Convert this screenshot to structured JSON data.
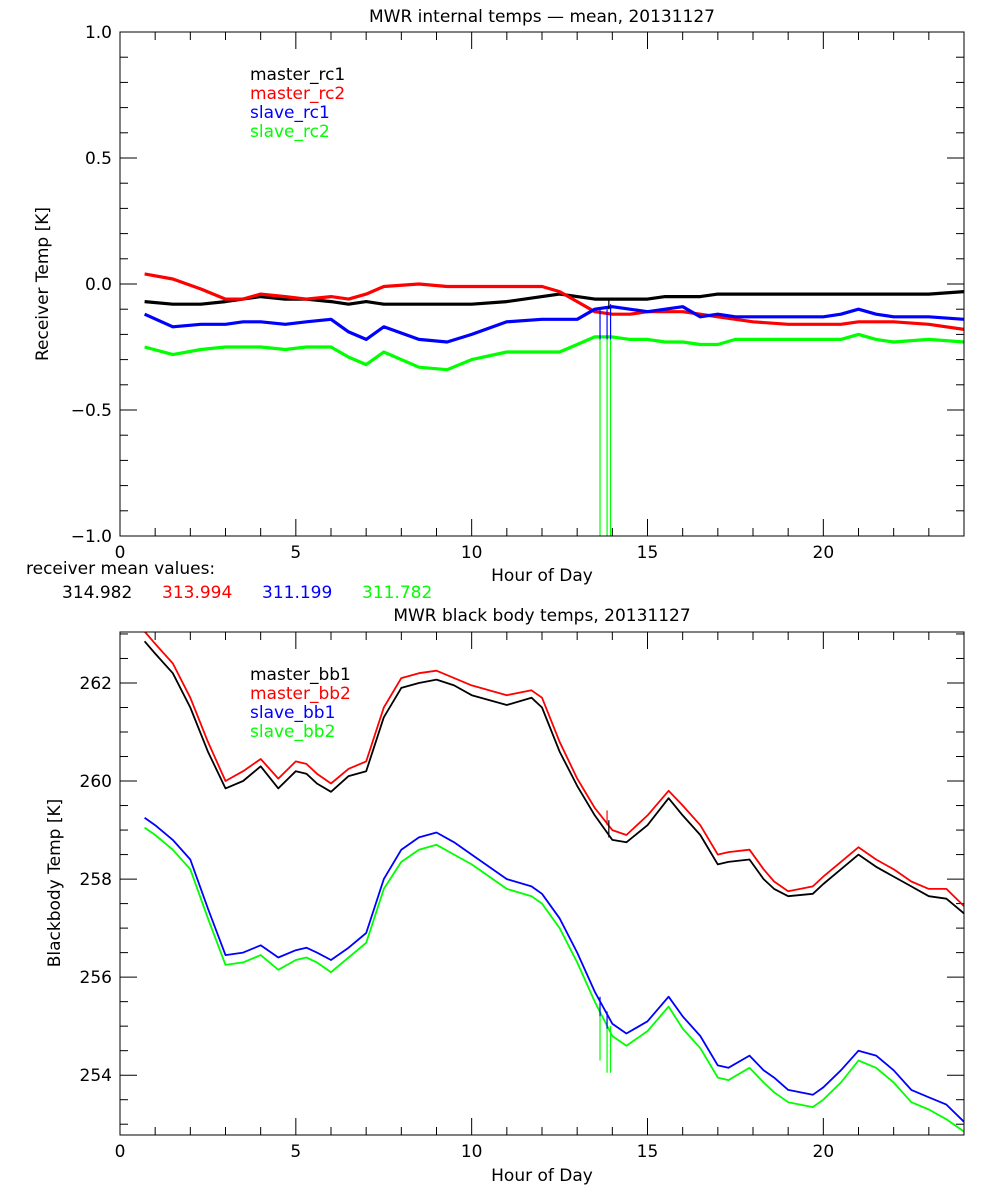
{
  "chart_data": [
    {
      "type": "line",
      "title": "MWR internal temps — mean, 20131127",
      "xlabel": "Hour of Day",
      "ylabel": "Receiver Temp [K]",
      "xlim": [
        0,
        24
      ],
      "ylim": [
        -1.0,
        1.0
      ],
      "xticks": [
        0,
        5,
        10,
        15,
        20
      ],
      "xtick_labels": [
        "0",
        "5",
        "10",
        "15",
        "20"
      ],
      "yticks": [
        -1.0,
        -0.5,
        0.0,
        0.5,
        1.0
      ],
      "ytick_labels": [
        "−1.0",
        "−0.5",
        "0.0",
        "0.5",
        "1.0"
      ],
      "grid": false,
      "legend_position": "top-left",
      "x": [
        0.7,
        1.5,
        2.3,
        3.0,
        3.5,
        4.0,
        4.7,
        5.3,
        6.0,
        6.5,
        7.0,
        7.5,
        8.5,
        9.3,
        10.0,
        11.0,
        12.0,
        12.5,
        13.0,
        13.5,
        14.0,
        14.5,
        15.0,
        15.5,
        16.0,
        16.5,
        17.0,
        17.5,
        18.0,
        19.0,
        20.0,
        20.5,
        21.0,
        21.5,
        22.0,
        23.0,
        24.0
      ],
      "series": [
        {
          "name": "master_rc1",
          "color": "#000000",
          "values": [
            -0.07,
            -0.08,
            -0.08,
            -0.07,
            -0.06,
            -0.05,
            -0.06,
            -0.06,
            -0.07,
            -0.08,
            -0.07,
            -0.08,
            -0.08,
            -0.08,
            -0.08,
            -0.07,
            -0.05,
            -0.04,
            -0.05,
            -0.06,
            -0.06,
            -0.06,
            -0.06,
            -0.05,
            -0.05,
            -0.05,
            -0.04,
            -0.04,
            -0.04,
            -0.04,
            -0.04,
            -0.04,
            -0.04,
            -0.04,
            -0.04,
            -0.04,
            -0.03
          ]
        },
        {
          "name": "master_rc2",
          "color": "#ff0000",
          "values": [
            0.04,
            0.02,
            -0.02,
            -0.06,
            -0.06,
            -0.04,
            -0.05,
            -0.06,
            -0.05,
            -0.06,
            -0.04,
            -0.01,
            0.0,
            -0.01,
            -0.01,
            -0.01,
            -0.01,
            -0.03,
            -0.07,
            -0.11,
            -0.12,
            -0.12,
            -0.11,
            -0.11,
            -0.11,
            -0.12,
            -0.13,
            -0.14,
            -0.15,
            -0.16,
            -0.16,
            -0.16,
            -0.15,
            -0.15,
            -0.15,
            -0.16,
            -0.18
          ]
        },
        {
          "name": "slave_rc1",
          "color": "#0000ff",
          "values": [
            -0.12,
            -0.17,
            -0.16,
            -0.16,
            -0.15,
            -0.15,
            -0.16,
            -0.15,
            -0.14,
            -0.19,
            -0.22,
            -0.17,
            -0.22,
            -0.23,
            -0.2,
            -0.15,
            -0.14,
            -0.14,
            -0.14,
            -0.1,
            -0.09,
            -0.1,
            -0.11,
            -0.1,
            -0.09,
            -0.13,
            -0.12,
            -0.13,
            -0.13,
            -0.13,
            -0.13,
            -0.12,
            -0.1,
            -0.12,
            -0.13,
            -0.13,
            -0.14
          ]
        },
        {
          "name": "slave_rc2",
          "color": "#00ff00",
          "values": [
            -0.25,
            -0.28,
            -0.26,
            -0.25,
            -0.25,
            -0.25,
            -0.26,
            -0.25,
            -0.25,
            -0.29,
            -0.32,
            -0.27,
            -0.33,
            -0.34,
            -0.3,
            -0.27,
            -0.27,
            -0.27,
            -0.24,
            -0.21,
            -0.21,
            -0.22,
            -0.22,
            -0.23,
            -0.23,
            -0.24,
            -0.24,
            -0.22,
            -0.22,
            -0.22,
            -0.22,
            -0.22,
            -0.2,
            -0.22,
            -0.23,
            -0.22,
            -0.23
          ]
        }
      ],
      "spikes": [
        {
          "x": 13.65,
          "color": "#00ff00",
          "from": -0.22,
          "to": -1.0
        },
        {
          "x": 13.85,
          "color": "#00ff00",
          "from": -0.22,
          "to": -1.0
        },
        {
          "x": 13.95,
          "color": "#00ff00",
          "from": -0.22,
          "to": -1.0
        },
        {
          "x": 13.65,
          "color": "#0000ff",
          "from": -0.1,
          "to": -0.22
        },
        {
          "x": 13.85,
          "color": "#0000ff",
          "from": -0.1,
          "to": -0.22
        },
        {
          "x": 13.95,
          "color": "#0000ff",
          "from": -0.08,
          "to": -0.22
        },
        {
          "x": 13.9,
          "color": "#000000",
          "from": -0.06,
          "to": -0.1
        }
      ],
      "annotation": {
        "label": "receiver mean values:",
        "values": [
          {
            "text": "314.982",
            "color": "#000000"
          },
          {
            "text": "313.994",
            "color": "#ff0000"
          },
          {
            "text": "311.199",
            "color": "#0000ff"
          },
          {
            "text": "311.782",
            "color": "#00ff00"
          }
        ]
      }
    },
    {
      "type": "line",
      "title": "MWR black body temps, 20131127",
      "xlabel": "Hour of Day",
      "ylabel": "Blackbody Temp [K]",
      "xlim": [
        0,
        24
      ],
      "ylim": [
        252.78,
        263.04
      ],
      "xticks": [
        0,
        5,
        10,
        15,
        20
      ],
      "xtick_labels": [
        "0",
        "5",
        "10",
        "15",
        "20"
      ],
      "yticks": [
        254,
        256,
        258,
        260,
        262
      ],
      "ytick_labels": [
        "254",
        "256",
        "258",
        "260",
        "262"
      ],
      "grid": false,
      "legend_position": "top-left",
      "x": [
        0.7,
        1.0,
        1.5,
        2.0,
        2.5,
        3.0,
        3.5,
        4.0,
        4.5,
        5.0,
        5.3,
        5.6,
        6.0,
        6.5,
        7.0,
        7.5,
        8.0,
        8.5,
        9.0,
        9.5,
        10.0,
        11.0,
        11.7,
        12.0,
        12.5,
        13.0,
        13.5,
        14.0,
        14.4,
        15.0,
        15.6,
        16.0,
        16.5,
        17.0,
        17.3,
        17.9,
        18.3,
        18.6,
        19.0,
        19.7,
        20.0,
        20.5,
        21.0,
        21.5,
        22.0,
        22.5,
        23.0,
        23.5,
        24.0
      ],
      "series": [
        {
          "name": "master_bb1",
          "color": "#000000",
          "values": [
            262.85,
            262.6,
            262.2,
            261.5,
            260.6,
            259.85,
            260.0,
            260.3,
            259.85,
            260.2,
            260.15,
            259.95,
            259.78,
            260.1,
            260.2,
            261.3,
            261.9,
            262.0,
            262.07,
            261.95,
            261.75,
            261.55,
            261.7,
            261.5,
            260.6,
            259.9,
            259.3,
            258.8,
            258.75,
            259.1,
            259.65,
            259.3,
            258.9,
            258.3,
            258.35,
            258.4,
            258.0,
            257.8,
            257.65,
            257.7,
            257.9,
            258.2,
            258.5,
            258.25,
            258.05,
            257.85,
            257.65,
            257.6,
            257.3
          ]
        },
        {
          "name": "master_bb2",
          "color": "#ff0000",
          "values": [
            263.05,
            262.8,
            262.4,
            261.7,
            260.8,
            260.0,
            260.2,
            260.45,
            260.05,
            260.4,
            260.35,
            260.15,
            259.95,
            260.25,
            260.4,
            261.5,
            262.1,
            262.2,
            262.25,
            262.1,
            261.95,
            261.75,
            261.85,
            261.7,
            260.8,
            260.05,
            259.45,
            259.0,
            258.9,
            259.3,
            259.8,
            259.5,
            259.1,
            258.5,
            258.55,
            258.6,
            258.2,
            257.95,
            257.75,
            257.85,
            258.05,
            258.35,
            258.65,
            258.4,
            258.2,
            257.95,
            257.8,
            257.8,
            257.45
          ]
        },
        {
          "name": "slave_bb1",
          "color": "#0000ff",
          "values": [
            259.25,
            259.1,
            258.8,
            258.4,
            257.4,
            256.45,
            256.5,
            256.65,
            256.4,
            256.55,
            256.6,
            256.5,
            256.35,
            256.6,
            256.9,
            258.0,
            258.6,
            258.85,
            258.95,
            258.75,
            258.5,
            258.0,
            257.85,
            257.7,
            257.2,
            256.5,
            255.7,
            255.05,
            254.85,
            255.1,
            255.6,
            255.2,
            254.8,
            254.2,
            254.15,
            254.4,
            254.1,
            253.95,
            253.7,
            253.6,
            253.75,
            254.1,
            254.5,
            254.4,
            254.1,
            253.7,
            253.55,
            253.4,
            253.05
          ]
        },
        {
          "name": "slave_bb2",
          "color": "#00ff00",
          "values": [
            259.05,
            258.9,
            258.6,
            258.2,
            257.2,
            256.25,
            256.3,
            256.45,
            256.15,
            256.35,
            256.4,
            256.3,
            256.1,
            256.4,
            256.7,
            257.8,
            258.35,
            258.6,
            258.7,
            258.5,
            258.3,
            257.8,
            257.65,
            257.5,
            257.0,
            256.3,
            255.5,
            254.8,
            254.6,
            254.9,
            255.4,
            254.95,
            254.55,
            253.95,
            253.9,
            254.15,
            253.85,
            253.65,
            253.45,
            253.35,
            253.5,
            253.85,
            254.3,
            254.15,
            253.85,
            253.45,
            253.3,
            253.1,
            252.85
          ]
        }
      ],
      "spikes": [
        {
          "x": 13.65,
          "color": "#00ff00",
          "from": 255.2,
          "to": 254.3
        },
        {
          "x": 13.85,
          "color": "#00ff00",
          "from": 255.0,
          "to": 254.05
        },
        {
          "x": 13.95,
          "color": "#00ff00",
          "from": 255.0,
          "to": 254.05
        },
        {
          "x": 13.65,
          "color": "#0000ff",
          "from": 255.6,
          "to": 255.2
        },
        {
          "x": 13.85,
          "color": "#0000ff",
          "from": 255.3,
          "to": 254.95
        },
        {
          "x": 13.9,
          "color": "#000000",
          "from": 259.2,
          "to": 258.85
        },
        {
          "x": 13.85,
          "color": "#ff0000",
          "from": 259.4,
          "to": 259.1
        }
      ]
    }
  ]
}
